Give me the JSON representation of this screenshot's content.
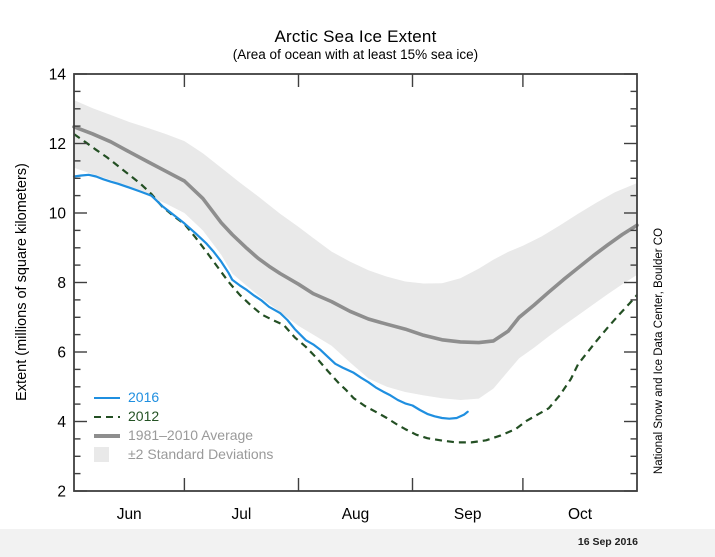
{
  "title": "Arctic Sea Ice Extent",
  "subtitle": "(Area of ocean with at least 15% sea ice)",
  "footer_date": "16 Sep 2016",
  "watermark": "National Snow and Ice Data Center, Boulder CO",
  "colors": {
    "line2016": "#1f8fe0",
    "line2012": "#234f23",
    "avg": "#8e8e8e",
    "band": "#e9e9e9",
    "frame": "#3f3f3f",
    "legend_gray": "#9a9a9a"
  },
  "legend": [
    {
      "label": "2016",
      "color": "#1f8fe0",
      "swatch": "solid-blue-line"
    },
    {
      "label": "2012",
      "color": "#245224",
      "swatch": "dashed-green-line"
    },
    {
      "label": "1981–2010 Average",
      "color": "#9a9a9a",
      "swatch": "thick-gray-line"
    },
    {
      "label": "±2 Standard Deviations",
      "color": "#9a9a9a",
      "swatch": "gray-band-box"
    }
  ],
  "chart_data": {
    "type": "line",
    "title": "Arctic Sea Ice Extent",
    "subtitle": "(Area of ocean with at least 15% sea ice)",
    "xlabel": "",
    "ylabel": "Extent (millions of square kilometers)",
    "ylim": [
      2,
      14
    ],
    "yticks_major": [
      2,
      4,
      6,
      8,
      10,
      12,
      14
    ],
    "ytick_minor_step": 0.5,
    "x_domain": [
      0,
      153
    ],
    "x_domain_note": "days from Jun 1 to Nov 1",
    "month_boundaries": [
      30,
      61,
      92,
      122
    ],
    "months": [
      {
        "label": "Jun",
        "mid_day": 15
      },
      {
        "label": "Jul",
        "mid_day": 45.5
      },
      {
        "label": "Aug",
        "mid_day": 76.5
      },
      {
        "label": "Sep",
        "mid_day": 107
      },
      {
        "label": "Oct",
        "mid_day": 137.5
      }
    ],
    "legend_position": "bottom-left-inside",
    "grid": false,
    "series": {
      "band_top": [
        [
          0,
          13.25
        ],
        [
          5,
          13.02
        ],
        [
          10,
          12.82
        ],
        [
          15,
          12.62
        ],
        [
          20,
          12.45
        ],
        [
          25,
          12.27
        ],
        [
          30,
          12.07
        ],
        [
          35,
          11.72
        ],
        [
          40,
          11.3
        ],
        [
          45,
          10.88
        ],
        [
          50,
          10.48
        ],
        [
          56,
          9.98
        ],
        [
          61,
          9.6
        ],
        [
          65,
          9.28
        ],
        [
          70,
          8.89
        ],
        [
          75,
          8.6
        ],
        [
          80,
          8.35
        ],
        [
          85,
          8.17
        ],
        [
          90,
          8.03
        ],
        [
          95,
          7.97
        ],
        [
          100,
          7.98
        ],
        [
          105,
          8.12
        ],
        [
          110,
          8.4
        ],
        [
          114,
          8.66
        ],
        [
          118,
          8.88
        ],
        [
          122,
          9.06
        ],
        [
          127,
          9.32
        ],
        [
          132,
          9.64
        ],
        [
          137,
          9.98
        ],
        [
          142,
          10.3
        ],
        [
          147,
          10.6
        ],
        [
          153,
          10.86
        ]
      ],
      "band_bottom": [
        [
          0,
          11.3
        ],
        [
          5,
          11.12
        ],
        [
          10,
          10.95
        ],
        [
          15,
          10.73
        ],
        [
          20,
          10.5
        ],
        [
          25,
          10.27
        ],
        [
          30,
          10.0
        ],
        [
          35,
          9.5
        ],
        [
          40,
          8.8
        ],
        [
          43,
          8.26
        ],
        [
          47,
          7.9
        ],
        [
          51,
          7.55
        ],
        [
          56,
          7.15
        ],
        [
          61,
          6.75
        ],
        [
          65,
          6.5
        ],
        [
          70,
          6.18
        ],
        [
          75,
          5.7
        ],
        [
          80,
          5.24
        ],
        [
          85,
          5.0
        ],
        [
          90,
          4.85
        ],
        [
          95,
          4.75
        ],
        [
          100,
          4.67
        ],
        [
          105,
          4.62
        ],
        [
          110,
          4.66
        ],
        [
          114,
          4.95
        ],
        [
          118,
          5.45
        ],
        [
          121,
          5.82
        ],
        [
          125,
          6.12
        ],
        [
          129,
          6.45
        ],
        [
          133,
          6.76
        ],
        [
          137,
          7.06
        ],
        [
          141,
          7.36
        ],
        [
          145,
          7.66
        ],
        [
          149,
          7.95
        ],
        [
          153,
          8.22
        ]
      ],
      "avg": [
        [
          0,
          12.48
        ],
        [
          5,
          12.28
        ],
        [
          10,
          12.05
        ],
        [
          15,
          11.76
        ],
        [
          20,
          11.48
        ],
        [
          25,
          11.2
        ],
        [
          30,
          10.92
        ],
        [
          35,
          10.42
        ],
        [
          40,
          9.72
        ],
        [
          43,
          9.38
        ],
        [
          47,
          8.98
        ],
        [
          50,
          8.7
        ],
        [
          53,
          8.47
        ],
        [
          56,
          8.26
        ],
        [
          61,
          7.95
        ],
        [
          65,
          7.68
        ],
        [
          70,
          7.45
        ],
        [
          75,
          7.17
        ],
        [
          80,
          6.95
        ],
        [
          85,
          6.8
        ],
        [
          90,
          6.66
        ],
        [
          95,
          6.48
        ],
        [
          100,
          6.35
        ],
        [
          105,
          6.29
        ],
        [
          110,
          6.27
        ],
        [
          114,
          6.32
        ],
        [
          118,
          6.6
        ],
        [
          121,
          7.0
        ],
        [
          125,
          7.35
        ],
        [
          129,
          7.72
        ],
        [
          133,
          8.08
        ],
        [
          137,
          8.42
        ],
        [
          141,
          8.76
        ],
        [
          145,
          9.08
        ],
        [
          149,
          9.38
        ],
        [
          153,
          9.65
        ]
      ],
      "y2012": [
        [
          0,
          12.27
        ],
        [
          3,
          12.05
        ],
        [
          6,
          11.82
        ],
        [
          9,
          11.6
        ],
        [
          12,
          11.35
        ],
        [
          15,
          11.1
        ],
        [
          18,
          10.85
        ],
        [
          21,
          10.55
        ],
        [
          24,
          10.18
        ],
        [
          27,
          9.92
        ],
        [
          30,
          9.68
        ],
        [
          33,
          9.3
        ],
        [
          36,
          8.88
        ],
        [
          39,
          8.45
        ],
        [
          42,
          8.02
        ],
        [
          45,
          7.65
        ],
        [
          48,
          7.35
        ],
        [
          51,
          7.08
        ],
        [
          54,
          6.92
        ],
        [
          57,
          6.78
        ],
        [
          60,
          6.42
        ],
        [
          63,
          6.15
        ],
        [
          66,
          5.82
        ],
        [
          69,
          5.45
        ],
        [
          72,
          5.1
        ],
        [
          74,
          4.9
        ],
        [
          76,
          4.67
        ],
        [
          79,
          4.45
        ],
        [
          82,
          4.28
        ],
        [
          85,
          4.1
        ],
        [
          88,
          3.9
        ],
        [
          90,
          3.78
        ],
        [
          93,
          3.62
        ],
        [
          96,
          3.52
        ],
        [
          100,
          3.45
        ],
        [
          104,
          3.4
        ],
        [
          108,
          3.4
        ],
        [
          112,
          3.46
        ],
        [
          116,
          3.6
        ],
        [
          120,
          3.78
        ],
        [
          123,
          4.02
        ],
        [
          126,
          4.2
        ],
        [
          129,
          4.38
        ],
        [
          132,
          4.75
        ],
        [
          135,
          5.22
        ],
        [
          137,
          5.65
        ],
        [
          139,
          5.92
        ],
        [
          142,
          6.32
        ],
        [
          145,
          6.7
        ],
        [
          148,
          7.06
        ],
        [
          151,
          7.4
        ],
        [
          153,
          7.64
        ]
      ],
      "y2016": [
        [
          0,
          11.05
        ],
        [
          2,
          11.08
        ],
        [
          4,
          11.1
        ],
        [
          6,
          11.05
        ],
        [
          8,
          10.97
        ],
        [
          10,
          10.9
        ],
        [
          12,
          10.84
        ],
        [
          15,
          10.73
        ],
        [
          18,
          10.62
        ],
        [
          21,
          10.5
        ],
        [
          24,
          10.2
        ],
        [
          27,
          9.95
        ],
        [
          30,
          9.7
        ],
        [
          33,
          9.42
        ],
        [
          36,
          9.12
        ],
        [
          38,
          8.88
        ],
        [
          40,
          8.6
        ],
        [
          42,
          8.28
        ],
        [
          43,
          8.08
        ],
        [
          45,
          7.92
        ],
        [
          47,
          7.78
        ],
        [
          49,
          7.62
        ],
        [
          51,
          7.48
        ],
        [
          53,
          7.3
        ],
        [
          56,
          7.12
        ],
        [
          58,
          6.92
        ],
        [
          60,
          6.66
        ],
        [
          63,
          6.34
        ],
        [
          65,
          6.22
        ],
        [
          67,
          6.06
        ],
        [
          69,
          5.86
        ],
        [
          71,
          5.66
        ],
        [
          73,
          5.55
        ],
        [
          76,
          5.4
        ],
        [
          78,
          5.26
        ],
        [
          80,
          5.13
        ],
        [
          82,
          4.98
        ],
        [
          84,
          4.86
        ],
        [
          86,
          4.75
        ],
        [
          88,
          4.62
        ],
        [
          90,
          4.52
        ],
        [
          92,
          4.46
        ],
        [
          94,
          4.33
        ],
        [
          96,
          4.22
        ],
        [
          98,
          4.15
        ],
        [
          100,
          4.1
        ],
        [
          102,
          4.08
        ],
        [
          104,
          4.1
        ],
        [
          106,
          4.2
        ],
        [
          107,
          4.28
        ]
      ]
    }
  }
}
